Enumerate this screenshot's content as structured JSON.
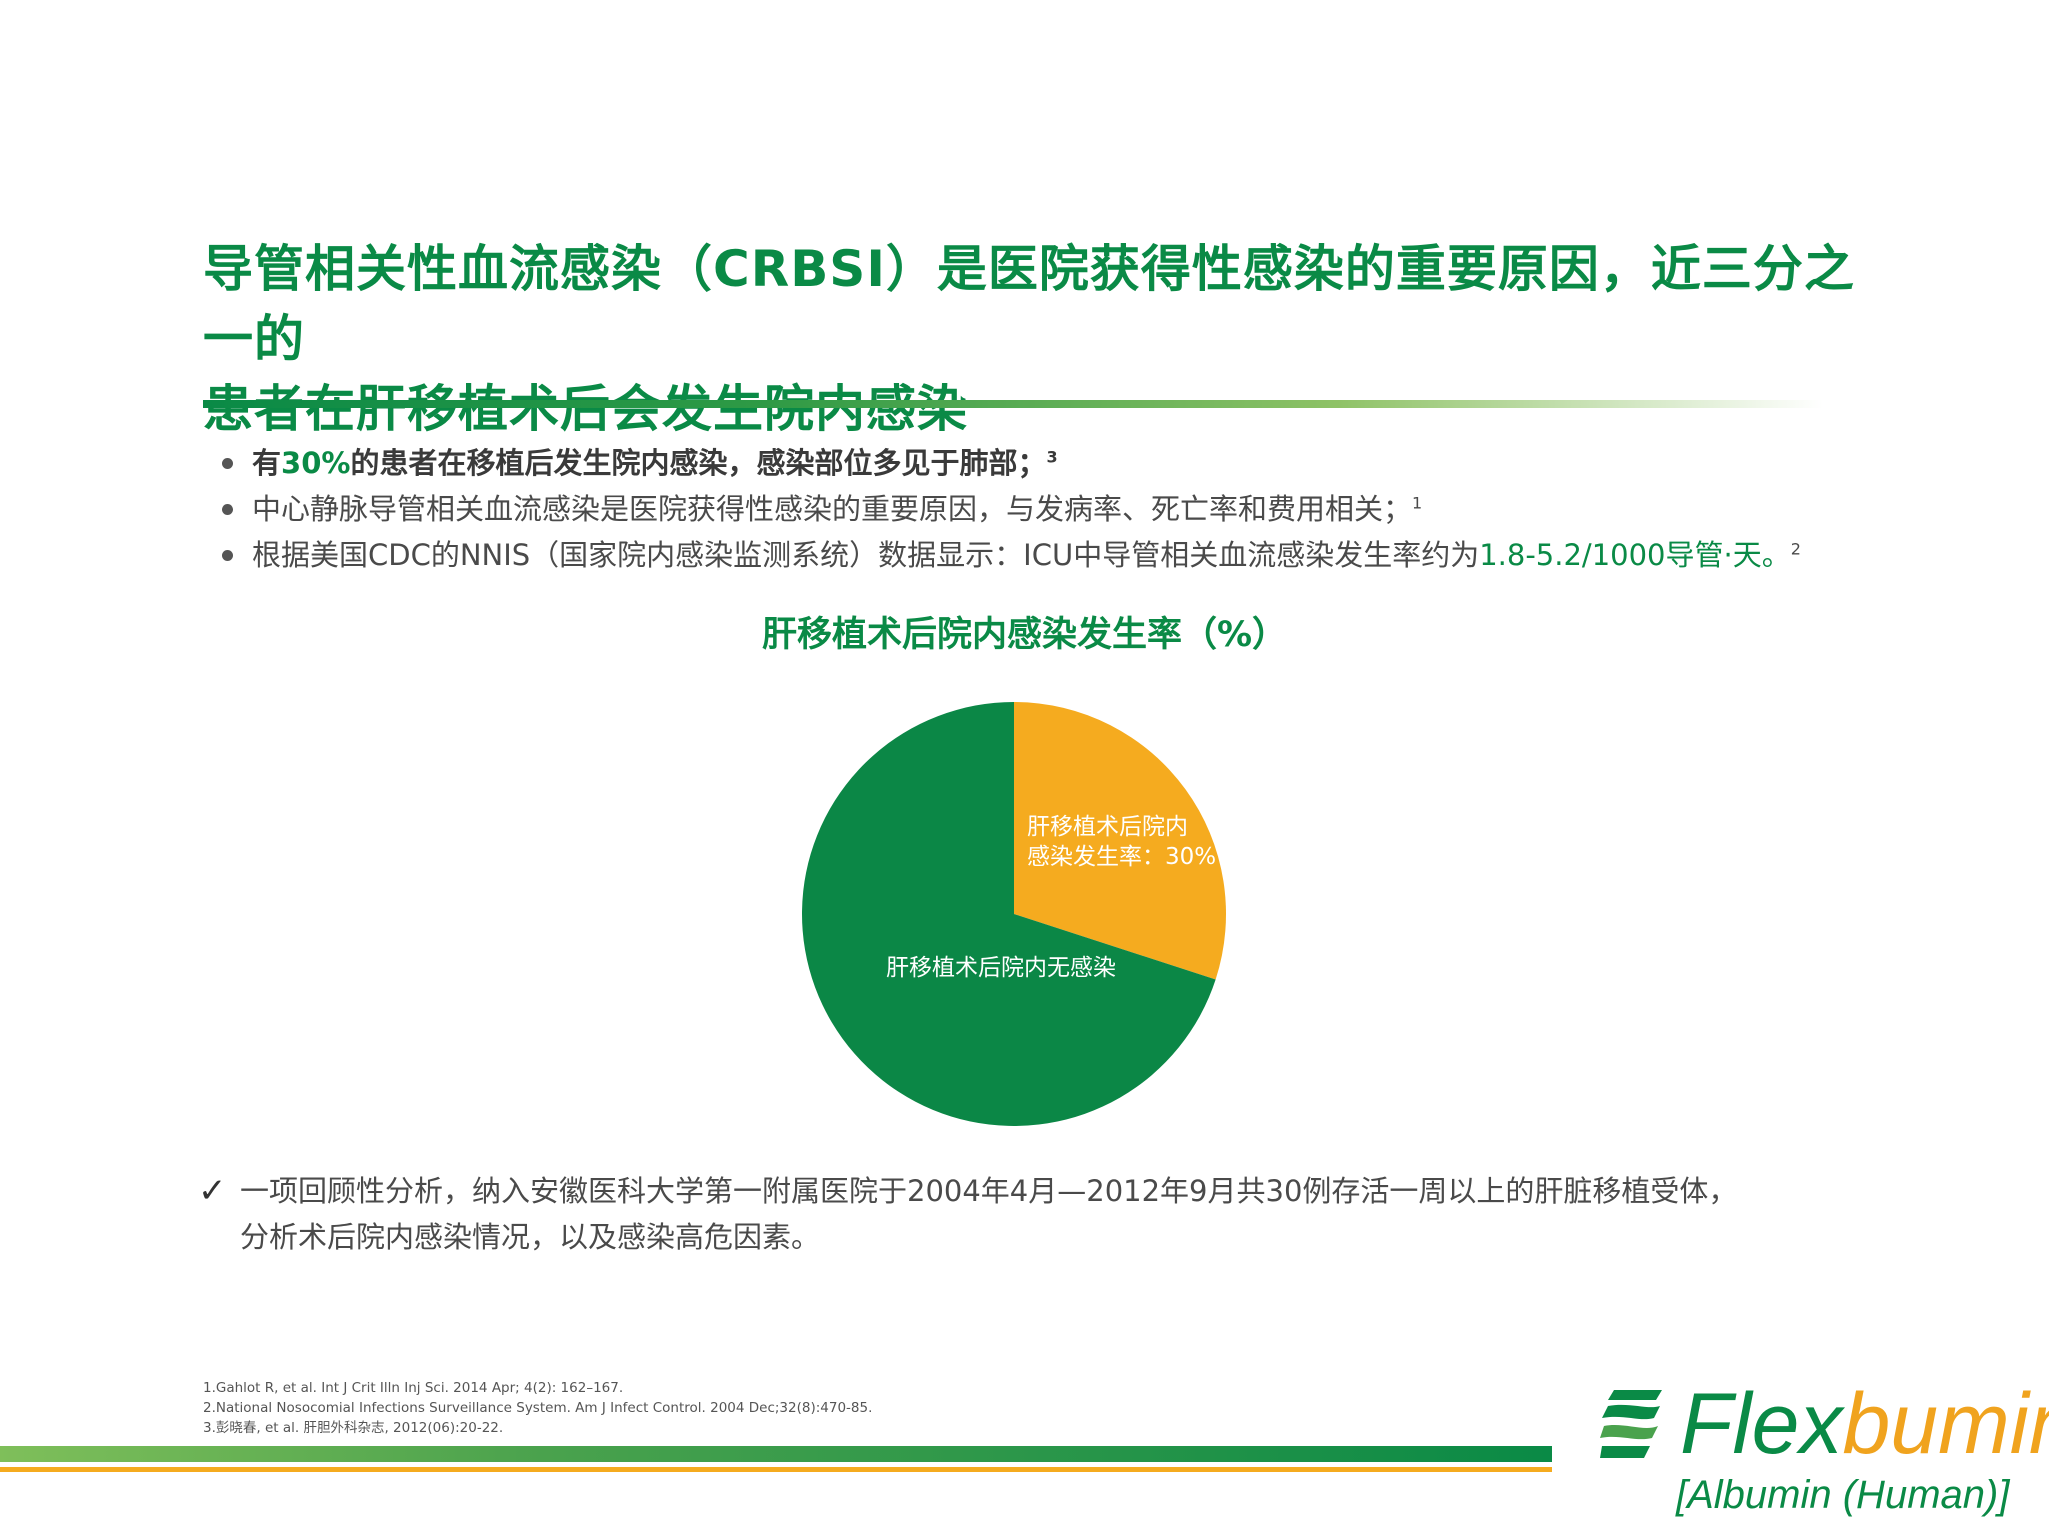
{
  "title": {
    "line1": "导管相关性血流感染（CRBSI）是医院获得性感染的重要原因，近三分之一的",
    "line2": "患者在肝移植术后会发生院内感染"
  },
  "bullets": {
    "b1": {
      "pre": "有",
      "highlight": "30%",
      "post": "的患者在移植后发生院内感染，感染部位多见于肺部；",
      "sup": "3"
    },
    "b2": {
      "text": "中心静脉导管相关血流感染是医院获得性感染的重要原因，与发病率、死亡率和费用相关；",
      "sup": "1"
    },
    "b3": {
      "pre": "根据美国CDC的NNIS（国家院内感染监测系统）数据显示：ICU中导管相关血流感染发生率约为",
      "highlight": "1.8-5.2/1000导管·天。",
      "sup": "2"
    }
  },
  "chart_title": "肝移植术后院内感染发生率（%）",
  "chart_data": {
    "type": "pie",
    "title": "肝移植术后院内感染发生率（%）",
    "slices": [
      {
        "label_line1": "肝移植术后院内",
        "label_line2": "感染发生率：30%",
        "value": 30,
        "color": "#f5ab1f"
      },
      {
        "label_line1": "肝移植术后院内无感染",
        "label_line2": "",
        "value": 70,
        "color": "#0b8746"
      }
    ]
  },
  "conclusion": {
    "line1": "一项回顾性分析，纳入安徽医科大学第一附属医院于2004年4月—2012年9月共30例存活一周以上的肝脏移植受体，",
    "line2": "分析术后院内感染情况，以及感染高危因素。"
  },
  "references": [
    "1.Gahlot R, et al. Int J Crit Illn Inj Sci. 2014 Apr; 4(2): 162–167.",
    "2.National Nosocomial Infections Surveillance System. Am J Infect Control. 2004 Dec;32(8):470-85.",
    "3.彭晓春, et al. 肝胆外科杂志, 2012(06):20-22."
  ],
  "logo": {
    "flex": "Flex",
    "bumin": "bumin",
    "sub": "[Albumin (Human)]"
  },
  "colors": {
    "green": "#0a8a46",
    "orange": "#f5ab1f"
  }
}
